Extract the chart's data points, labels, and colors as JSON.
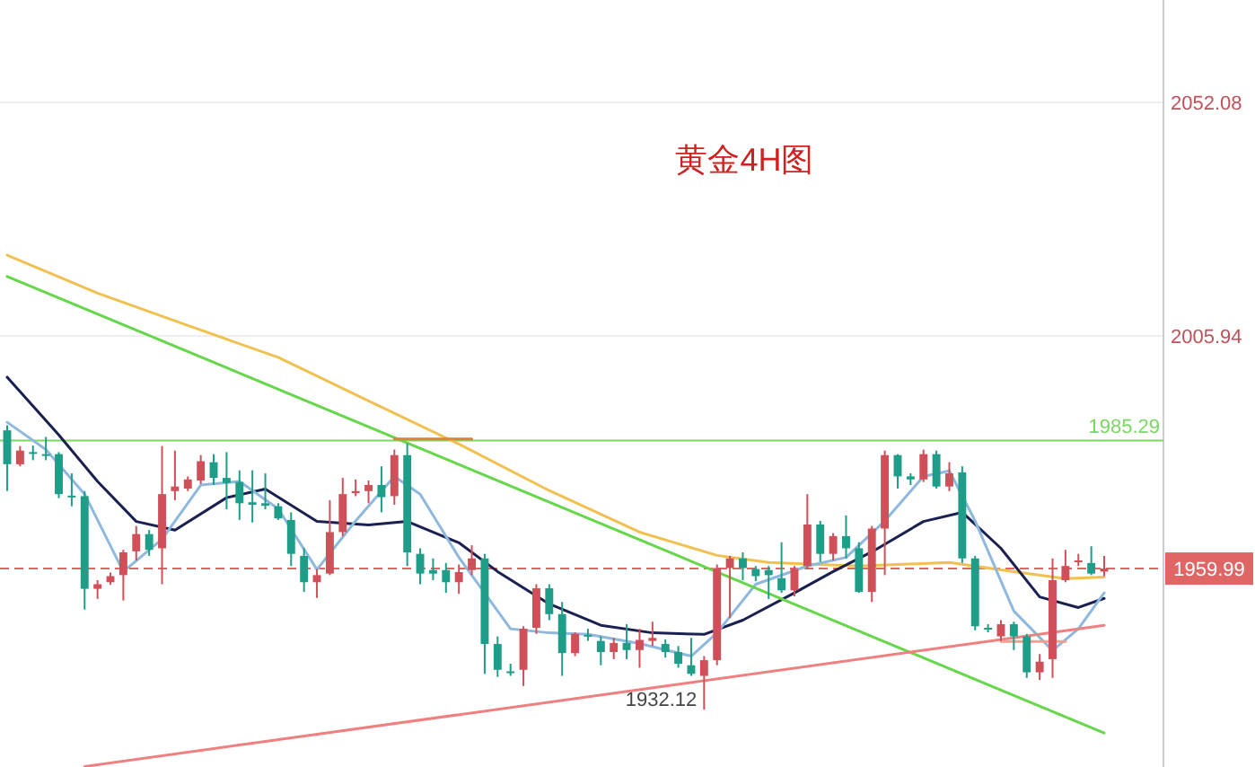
{
  "chart_data": {
    "type": "candlestick",
    "title": "黄金4H图",
    "categories": [
      null,
      null,
      null,
      null,
      null,
      null,
      null,
      null,
      null,
      null,
      null,
      null,
      null,
      null,
      null,
      null,
      null,
      null,
      null,
      null,
      null,
      null,
      null,
      null,
      null,
      null,
      null,
      null,
      null,
      null,
      null,
      null,
      null,
      null,
      null,
      null,
      null,
      null,
      null,
      null,
      null,
      null,
      null,
      null,
      null,
      null,
      null,
      null,
      null,
      null,
      null,
      null,
      null,
      null,
      null,
      null,
      null,
      null,
      null,
      null,
      null,
      null,
      null,
      null,
      null,
      null,
      null,
      null,
      null,
      null,
      null,
      null,
      null,
      null,
      null,
      null,
      null,
      null,
      null,
      null,
      null,
      null,
      null,
      null,
      null,
      null
    ],
    "ohlc": [
      [
        1987.3,
        1988.3,
        1975.3,
        1980.6
      ],
      [
        1980.6,
        1984.2,
        1980.2,
        1983.3
      ],
      [
        1983.0,
        1984.3,
        1981.4,
        1982.8
      ],
      [
        1982.6,
        1986.0,
        1981.4,
        1982.5
      ],
      [
        1982.6,
        1983.0,
        1973.9,
        1974.7
      ],
      [
        1974.4,
        1978.8,
        1972.3,
        1974.1
      ],
      [
        1974.3,
        1975.3,
        1951.9,
        1956.0
      ],
      [
        1956.0,
        1957.7,
        1954.0,
        1956.9
      ],
      [
        1957.3,
        1959.2,
        1956.8,
        1958.5
      ],
      [
        1958.7,
        1963.7,
        1953.7,
        1963.2
      ],
      [
        1963.4,
        1968.4,
        1961.6,
        1966.8
      ],
      [
        1966.8,
        1967.6,
        1962.5,
        1963.7
      ],
      [
        1964.0,
        1984.2,
        1956.9,
        1974.7
      ],
      [
        1975.3,
        1983.3,
        1973.5,
        1976.2
      ],
      [
        1975.8,
        1978.2,
        1975.3,
        1977.6
      ],
      [
        1977.4,
        1982.4,
        1976.7,
        1981.2
      ],
      [
        1981.0,
        1982.6,
        1976.5,
        1977.9
      ],
      [
        1977.9,
        1983.0,
        1971.7,
        1976.9
      ],
      [
        1977.1,
        1979.4,
        1969.6,
        1972.9
      ],
      [
        1973.1,
        1979.4,
        1969.1,
        1972.6
      ],
      [
        1972.9,
        1978.8,
        1971.7,
        1972.4
      ],
      [
        1972.3,
        1972.9,
        1969.6,
        1969.9
      ],
      [
        1969.6,
        1971.1,
        1960.5,
        1962.9
      ],
      [
        1962.5,
        1964.0,
        1955.4,
        1957.3
      ],
      [
        1957.3,
        1959.9,
        1954.2,
        1958.7
      ],
      [
        1959.0,
        1973.5,
        1958.7,
        1967.2
      ],
      [
        1967.2,
        1977.9,
        1966.4,
        1974.7
      ],
      [
        1974.9,
        1977.6,
        1974.3,
        1975.3
      ],
      [
        1975.3,
        1977.4,
        1972.9,
        1976.5
      ],
      [
        1976.5,
        1980.2,
        1971.1,
        1974.1
      ],
      [
        1974.3,
        1983.5,
        1972.6,
        1982.4
      ],
      [
        1982.4,
        1984.7,
        1960.5,
        1963.2
      ],
      [
        1962.9,
        1964.0,
        1956.9,
        1959.0
      ],
      [
        1959.7,
        1962.0,
        1957.7,
        1959.0
      ],
      [
        1959.7,
        1961.1,
        1955.2,
        1957.3
      ],
      [
        1957.3,
        1960.8,
        1955.0,
        1959.3
      ],
      [
        1959.7,
        1964.6,
        1958.7,
        1962.0
      ],
      [
        1962.0,
        1962.9,
        1939.2,
        1945.1
      ],
      [
        1945.1,
        1946.6,
        1938.6,
        1940.0
      ],
      [
        1939.7,
        1941.2,
        1938.8,
        1939.5
      ],
      [
        1940.0,
        1948.6,
        1936.8,
        1948.1
      ],
      [
        1948.3,
        1956.9,
        1947.1,
        1956.1
      ],
      [
        1956.1,
        1956.9,
        1949.8,
        1951.0
      ],
      [
        1951.0,
        1953.4,
        1938.8,
        1943.3
      ],
      [
        1943.3,
        1947.4,
        1942.7,
        1947.1
      ],
      [
        1946.9,
        1948.1,
        1945.7,
        1946.7
      ],
      [
        1945.7,
        1946.6,
        1940.9,
        1943.5
      ],
      [
        1943.5,
        1946.3,
        1942.1,
        1945.3
      ],
      [
        1945.3,
        1949.0,
        1942.1,
        1943.9
      ],
      [
        1943.9,
        1948.1,
        1940.4,
        1945.9
      ],
      [
        1945.7,
        1949.5,
        1944.7,
        1946.3
      ],
      [
        1945.1,
        1946.0,
        1942.4,
        1943.5
      ],
      [
        1943.5,
        1944.7,
        1940.4,
        1941.2
      ],
      [
        1940.9,
        1946.3,
        1938.8,
        1939.2
      ],
      [
        1938.8,
        1942.7,
        1932.12,
        1941.9
      ],
      [
        1941.9,
        1960.8,
        1940.9,
        1960.1
      ],
      [
        1960.1,
        1962.5,
        1950.2,
        1962.0
      ],
      [
        1962.0,
        1963.2,
        1957.7,
        1960.1
      ],
      [
        1959.9,
        1960.5,
        1957.5,
        1958.5
      ],
      [
        1959.7,
        1960.5,
        1954.0,
        1958.7
      ],
      [
        1958.1,
        1965.2,
        1955.2,
        1955.7
      ],
      [
        1955.7,
        1960.5,
        1954.5,
        1959.9
      ],
      [
        1960.5,
        1974.7,
        1959.9,
        1968.7
      ],
      [
        1968.7,
        1969.4,
        1961.3,
        1962.9
      ],
      [
        1962.9,
        1967.0,
        1961.6,
        1966.4
      ],
      [
        1966.4,
        1970.5,
        1962.0,
        1964.0
      ],
      [
        1964.0,
        1965.2,
        1955.2,
        1955.4
      ],
      [
        1955.4,
        1968.4,
        1953.4,
        1967.9
      ],
      [
        1967.9,
        1983.3,
        1958.7,
        1982.4
      ],
      [
        1982.4,
        1982.6,
        1975.8,
        1978.2
      ],
      [
        1978.2,
        1978.8,
        1976.5,
        1977.6
      ],
      [
        1977.6,
        1983.5,
        1977.1,
        1982.6
      ],
      [
        1982.6,
        1983.3,
        1975.8,
        1976.2
      ],
      [
        1976.2,
        1981.0,
        1975.3,
        1978.8
      ],
      [
        1979.0,
        1980.2,
        1961.1,
        1962.0
      ],
      [
        1962.0,
        1962.5,
        1947.8,
        1948.6
      ],
      [
        1948.3,
        1949.0,
        1947.4,
        1948.1
      ],
      [
        1946.6,
        1949.8,
        1945.7,
        1949.0
      ],
      [
        1949.0,
        1949.5,
        1943.9,
        1946.6
      ],
      [
        1946.6,
        1947.1,
        1938.4,
        1939.5
      ],
      [
        1939.5,
        1943.1,
        1938.0,
        1941.6
      ],
      [
        1942.1,
        1962.0,
        1938.4,
        1957.7
      ],
      [
        1957.7,
        1963.7,
        1957.3,
        1960.5
      ],
      [
        1961.3,
        1962.9,
        1960.5,
        1961.6
      ],
      [
        1961.1,
        1964.4,
        1958.7,
        1959.0
      ],
      [
        1959.4,
        1962.5,
        1958.5,
        1959.99
      ]
    ],
    "colors": [
      "#1e9e88",
      "#d0505a",
      "#1e9e88",
      "#1e9e88",
      "#1e9e88",
      "#1e9e88",
      "#1e9e88",
      "#d0505a",
      "#d0505a",
      "#d0505a",
      "#d0505a",
      "#1e9e88",
      "#d0505a",
      "#d0505a",
      "#d0505a",
      "#d0505a",
      "#1e9e88",
      "#1e9e88",
      "#1e9e88",
      "#1e9e88",
      "#1e9e88",
      "#1e9e88",
      "#1e9e88",
      "#1e9e88",
      "#d0505a",
      "#d0505a",
      "#d0505a",
      "#d0505a",
      "#d0505a",
      "#1e9e88",
      "#d0505a",
      "#1e9e88",
      "#1e9e88",
      "#1e9e88",
      "#1e9e88",
      "#d0505a",
      "#d0505a",
      "#1e9e88",
      "#1e9e88",
      "#1e9e88",
      "#d0505a",
      "#d0505a",
      "#1e9e88",
      "#1e9e88",
      "#d0505a",
      "#1e9e88",
      "#1e9e88",
      "#d0505a",
      "#1e9e88",
      "#d0505a",
      "#d0505a",
      "#1e9e88",
      "#1e9e88",
      "#1e9e88",
      "#d0505a",
      "#d0505a",
      "#d0505a",
      "#1e9e88",
      "#1e9e88",
      "#1e9e88",
      "#1e9e88",
      "#d0505a",
      "#d0505a",
      "#1e9e88",
      "#d0505a",
      "#1e9e88",
      "#1e9e88",
      "#d0505a",
      "#d0505a",
      "#1e9e88",
      "#1e9e88",
      "#d0505a",
      "#1e9e88",
      "#d0505a",
      "#1e9e88",
      "#1e9e88",
      "#1e9e88",
      "#d0505a",
      "#1e9e88",
      "#1e9e88",
      "#d0505a",
      "#d0505a",
      "#d0505a",
      "#d0505a",
      "#1e9e88",
      "#d0505a"
    ],
    "series": [
      {
        "type": "line",
        "color": "#f0c050",
        "values": [
          2021.9,
          null,
          null,
          null,
          null,
          null,
          null,
          2014.4,
          null,
          null,
          null,
          null,
          null,
          null,
          2008.0,
          null,
          null,
          null,
          null,
          null,
          null,
          2001.7,
          null,
          null,
          null,
          null,
          null,
          null,
          1993.1,
          null,
          null,
          null,
          null,
          null,
          null,
          1984.6,
          null,
          null,
          null,
          null,
          null,
          null,
          1975.4,
          null,
          null,
          null,
          null,
          null,
          null,
          1967.2,
          null,
          null,
          null,
          null,
          null,
          1962.6,
          null,
          null,
          null,
          1961.2,
          null,
          null,
          null,
          null,
          null,
          null,
          1960.5,
          null,
          null,
          null,
          null,
          null,
          null,
          1961.2,
          null,
          null,
          null,
          null,
          1959.4,
          null,
          null,
          null,
          1958.0,
          null,
          null,
          1958.3
        ]
      },
      {
        "type": "line",
        "color": "#1a2050",
        "values": [
          1997.8,
          null,
          null,
          null,
          1986.4,
          null,
          null,
          1977.2,
          null,
          null,
          1969.3,
          null,
          null,
          1967.6,
          null,
          null,
          null,
          1974.0,
          null,
          null,
          1975.7,
          null,
          null,
          null,
          1969.3,
          null,
          null,
          null,
          1968.6,
          null,
          null,
          1969.3,
          null,
          null,
          null,
          1965.1,
          null,
          null,
          1959.4,
          null,
          null,
          null,
          1953.0,
          null,
          null,
          null,
          1948.8,
          null,
          null,
          null,
          1947.3,
          null,
          null,
          null,
          1947.0,
          null,
          null,
          1949.8,
          null,
          null,
          null,
          1955.2,
          null,
          null,
          1959.4,
          null,
          null,
          1963.3,
          null,
          null,
          null,
          1969.3,
          null,
          null,
          1971.1,
          null,
          null,
          1964.0,
          null,
          null,
          1954.4,
          null,
          null,
          1952.3,
          null,
          1954.1
        ]
      },
      {
        "type": "line",
        "color": "#8fb8de",
        "values": [
          1988.9,
          null,
          null,
          1983.5,
          null,
          null,
          1974.7,
          null,
          null,
          1959.4,
          null,
          null,
          1965.8,
          null,
          null,
          1976.5,
          null,
          null,
          1977.2,
          null,
          null,
          1971.8,
          null,
          null,
          1959.8,
          null,
          null,
          1969.4,
          null,
          null,
          1978.2,
          null,
          1974.7,
          null,
          null,
          1962.2,
          null,
          null,
          null,
          1948.1,
          null,
          null,
          1947.3,
          null,
          null,
          1947.0,
          null,
          null,
          null,
          1945.2,
          null,
          null,
          null,
          1942.7,
          null,
          1947.3,
          null,
          null,
          1956.9,
          null,
          null,
          null,
          1960.5,
          null,
          null,
          1962.2,
          null,
          null,
          1969.4,
          null,
          null,
          1978.2,
          null,
          1979.3,
          null,
          1969.4,
          null,
          null,
          1951.6,
          null,
          null,
          1943.8,
          null,
          1948.1,
          null,
          1955.2
        ]
      },
      {
        "type": "line",
        "color": "#66d64a",
        "values": [
          2017.7,
          null,
          null,
          null,
          null,
          null,
          null,
          null,
          null,
          null,
          null,
          null,
          null,
          null,
          null,
          null,
          null,
          null,
          null,
          null,
          null,
          null,
          null,
          null,
          null,
          null,
          null,
          null,
          null,
          null,
          null,
          null,
          null,
          null,
          null,
          null,
          null,
          null,
          null,
          null,
          null,
          null,
          null,
          null,
          null,
          null,
          null,
          null,
          null,
          null,
          null,
          null,
          null,
          null,
          null,
          null,
          null,
          null,
          null,
          null,
          null,
          null,
          null,
          null,
          null,
          null,
          null,
          null,
          null,
          null,
          null,
          null,
          null,
          null,
          null,
          null,
          null,
          null,
          null,
          null,
          null,
          null,
          null,
          null,
          null,
          1927.5
        ]
      },
      {
        "type": "line",
        "color": "#f08080",
        "values": [
          null,
          null,
          null,
          null,
          null,
          null,
          1920.9,
          null,
          null,
          null,
          null,
          null,
          null,
          null,
          null,
          null,
          null,
          null,
          null,
          null,
          null,
          null,
          null,
          null,
          null,
          null,
          null,
          null,
          null,
          null,
          null,
          null,
          null,
          null,
          null,
          null,
          null,
          null,
          null,
          null,
          null,
          null,
          null,
          null,
          null,
          null,
          null,
          null,
          null,
          null,
          null,
          null,
          null,
          null,
          null,
          null,
          null,
          null,
          null,
          null,
          null,
          null,
          null,
          null,
          null,
          null,
          null,
          null,
          null,
          null,
          null,
          null,
          null,
          null,
          null,
          null,
          null,
          null,
          null,
          null,
          null,
          null,
          null,
          null,
          null,
          1948.8
        ]
      },
      {
        "type": "line",
        "color": "#e0803a",
        "values": [
          null,
          null,
          null,
          null,
          null,
          null,
          null,
          null,
          null,
          null,
          null,
          null,
          null,
          null,
          null,
          null,
          null,
          null,
          null,
          null,
          null,
          null,
          null,
          null,
          null,
          null,
          null,
          null,
          null,
          null,
          1985.6,
          null,
          null,
          null,
          null,
          null,
          1985.6,
          null,
          null,
          null,
          null,
          null,
          null,
          null,
          null,
          null,
          null,
          null,
          null,
          null,
          null,
          null,
          null,
          null,
          null,
          null,
          null,
          null,
          null,
          null,
          null,
          null,
          null,
          null,
          null,
          null,
          null,
          null,
          null,
          null,
          null,
          null,
          null,
          null,
          null,
          null,
          null,
          null,
          null,
          null,
          null,
          null,
          null,
          null,
          null,
          null
        ]
      },
      {
        "type": "line",
        "color": "#f0a090",
        "values": [
          null,
          null,
          null,
          null,
          null,
          null,
          null,
          null,
          null,
          null,
          null,
          null,
          null,
          null,
          null,
          null,
          null,
          null,
          null,
          null,
          null,
          null,
          null,
          null,
          null,
          null,
          null,
          null,
          null,
          null,
          null,
          null,
          null,
          null,
          null,
          null,
          null,
          null,
          null,
          null,
          null,
          null,
          null,
          null,
          null,
          null,
          null,
          null,
          null,
          null,
          null,
          null,
          null,
          null,
          null,
          null,
          null,
          null,
          null,
          null,
          null,
          null,
          null,
          null,
          null,
          null,
          null,
          null,
          null,
          null,
          null,
          null,
          null,
          null,
          null,
          null,
          null,
          1945.6,
          null,
          null,
          null,
          null,
          1945.6,
          null,
          null,
          null
        ]
      }
    ],
    "ref_lines": [
      {
        "axis": "y",
        "value": 1985.29,
        "label": "1985.29",
        "color": "#7ad860",
        "line_style": "solid"
      },
      {
        "axis": "y",
        "value": 1959.99,
        "label": "1959.99",
        "color": "#e06666",
        "line_style": "dashed"
      }
    ],
    "annotations": [
      "1932.12"
    ],
    "ylim": [
      1920.8,
      2072.3
    ],
    "yticks": [
      2052.08,
      2005.94
    ],
    "tick_labels": "y",
    "grid": "y"
  }
}
